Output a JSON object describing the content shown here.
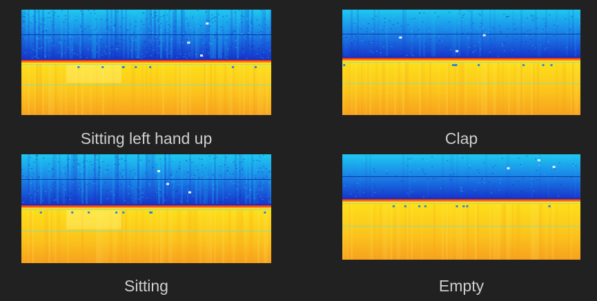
{
  "panels": [
    {
      "caption": "Sitting left hand up",
      "band": 0.49,
      "noise": 0.9,
      "warm_patch": true
    },
    {
      "caption": "Clap",
      "band": 0.47,
      "noise": 0.45,
      "warm_patch": false
    },
    {
      "caption": "Sitting",
      "band": 0.48,
      "noise": 0.8,
      "warm_patch": true
    },
    {
      "caption": "Empty",
      "band": 0.44,
      "noise": 0.25,
      "warm_patch": false
    }
  ],
  "colors": {
    "background": "#212121",
    "caption": "#cfcfcf",
    "deep_blue": "#1530c8",
    "blue": "#1a7ee6",
    "cyan": "#1ec8f0",
    "red_band": "#e83a10",
    "yellow": "#fde21a",
    "orange": "#f7a21e",
    "teal_line": "#7fe0b0"
  }
}
